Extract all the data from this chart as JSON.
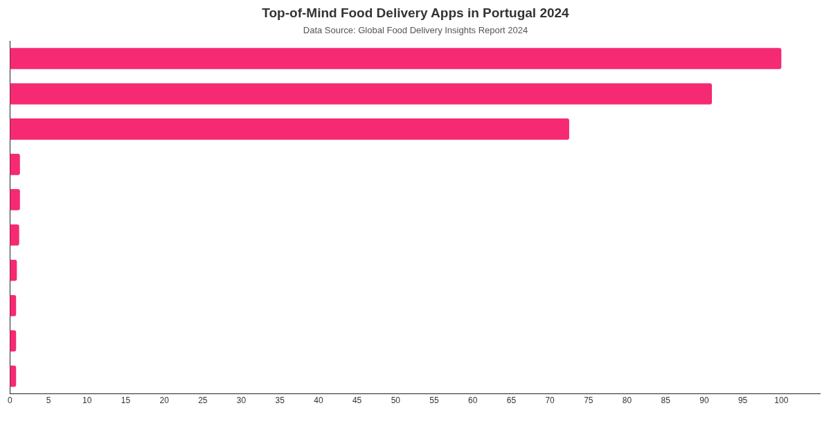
{
  "chart_data": {
    "type": "bar",
    "orientation": "horizontal",
    "title": "Top-of-Mind Food Delivery Apps in Portugal 2024",
    "subtitle": "Data Source: Global Food Delivery Insights Report 2024",
    "categories": [
      null,
      null,
      null,
      null,
      null,
      null,
      null,
      null,
      null,
      null
    ],
    "values": [
      100,
      91,
      72.5,
      1.3,
      1.3,
      1.2,
      0.9,
      0.8,
      0.8,
      0.8
    ],
    "color": "#f52a72",
    "xlim": [
      0,
      105
    ],
    "xticks": [
      0,
      5,
      10,
      15,
      20,
      25,
      30,
      35,
      40,
      45,
      50,
      55,
      60,
      65,
      70,
      75,
      80,
      85,
      90,
      95,
      100
    ],
    "grid": false,
    "legend": false,
    "tick_labels": "x"
  }
}
